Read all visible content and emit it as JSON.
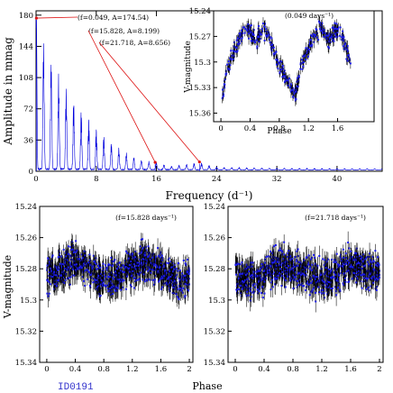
{
  "chart_data": [
    {
      "type": "line",
      "id": "periodogram",
      "xlabel": "Frequency (d⁻¹)",
      "ylabel": "Amplitude in mmag",
      "xlim": [
        0,
        46
      ],
      "ylim": [
        0,
        185
      ],
      "xticks": [
        0,
        8,
        16,
        24,
        32,
        40
      ],
      "yticks": [
        0,
        36,
        72,
        108,
        144,
        180
      ],
      "series": [
        {
          "x": [
            0.049,
            1.0,
            2.0,
            3.0,
            4.0,
            5.0,
            6.0,
            7.0,
            8.0,
            9.0,
            10.0,
            11.0,
            12.0,
            13.0,
            14.0,
            15.828,
            18.0,
            21.718,
            24.0,
            30.0,
            40.0
          ],
          "values": [
            174.54,
            150,
            130,
            112,
            95,
            82,
            70,
            60,
            48,
            40,
            32,
            25,
            20,
            15,
            11,
            8.2,
            4,
            8.66,
            3,
            2,
            1.5
          ]
        }
      ],
      "annotations": [
        {
          "text": "(f=0.049, A=174.54)",
          "x": 0.049,
          "y": 174.54
        },
        {
          "text": "(f=15.828, A=8.199)",
          "x": 15.828,
          "y": 8.199
        },
        {
          "text": "(f=21.718, A=8.656)",
          "x": 21.718,
          "y": 8.656
        }
      ]
    },
    {
      "type": "scatter",
      "id": "phase-f0049",
      "title": "(0.049 days⁻¹)",
      "xlabel": "Phase",
      "ylabel": "V-magnitude",
      "xlim": [
        -0.1,
        2.1
      ],
      "ylim": [
        15.24,
        15.37
      ],
      "xticks": [
        0,
        0.4,
        0.8,
        1.2,
        1.6
      ],
      "yticks": [
        15.24,
        15.27,
        15.3,
        15.33,
        15.36
      ],
      "series": [
        {
          "x": [
            0.02,
            0.08,
            0.15,
            0.22,
            0.3,
            0.36,
            0.42,
            0.48,
            0.55,
            0.62,
            0.7,
            0.78,
            1.02,
            1.08,
            1.15,
            1.22,
            1.3,
            1.36,
            1.42,
            1.48,
            1.55,
            1.62,
            1.7,
            1.78
          ],
          "values": [
            15.34,
            15.31,
            15.295,
            15.28,
            15.265,
            15.26,
            15.268,
            15.275,
            15.265,
            15.262,
            15.28,
            15.3,
            15.34,
            15.31,
            15.295,
            15.28,
            15.265,
            15.26,
            15.268,
            15.275,
            15.265,
            15.262,
            15.28,
            15.3
          ]
        }
      ]
    },
    {
      "type": "scatter",
      "id": "phase-f15828",
      "title": "(f=15.828 days⁻¹)",
      "xlabel": "",
      "ylabel": "V-magnitude",
      "xlim": [
        -0.1,
        2.05
      ],
      "ylim": [
        15.24,
        15.34
      ],
      "xticks": [
        0,
        0.4,
        0.8,
        1.2,
        1.6,
        2
      ],
      "yticks": [
        15.24,
        15.26,
        15.28,
        15.3,
        15.32,
        15.34
      ],
      "series": [
        {
          "x": [
            0.0,
            0.2,
            0.4,
            0.6,
            0.8,
            1.0,
            1.2,
            1.4,
            1.6,
            1.8,
            2.0
          ],
          "values": [
            15.285,
            15.279,
            15.275,
            15.281,
            15.287,
            15.285,
            15.279,
            15.275,
            15.281,
            15.287,
            15.285
          ]
        }
      ]
    },
    {
      "type": "scatter",
      "id": "phase-f21718",
      "title": "(f=21.718 days⁻¹)",
      "xlabel": "",
      "ylabel": "",
      "xlim": [
        -0.1,
        2.05
      ],
      "ylim": [
        15.24,
        15.34
      ],
      "xticks": [
        0,
        0.4,
        0.8,
        1.2,
        1.6,
        2
      ],
      "yticks": [
        15.24,
        15.26,
        15.28,
        15.3,
        15.32,
        15.34
      ],
      "series": [
        {
          "x": [
            0.0,
            0.2,
            0.4,
            0.6,
            0.8,
            1.0,
            1.2,
            1.4,
            1.6,
            1.8,
            2.0
          ],
          "values": [
            15.283,
            15.288,
            15.284,
            15.277,
            15.28,
            15.283,
            15.288,
            15.284,
            15.277,
            15.28,
            15.283
          ]
        }
      ]
    }
  ],
  "star_id": "ID0191",
  "bottom_xlabel": "Phase",
  "colors": {
    "spectrum": "#0000dd",
    "points": "#1a1aee",
    "arrows": "#dd1111",
    "star_id": "#3333cc"
  }
}
